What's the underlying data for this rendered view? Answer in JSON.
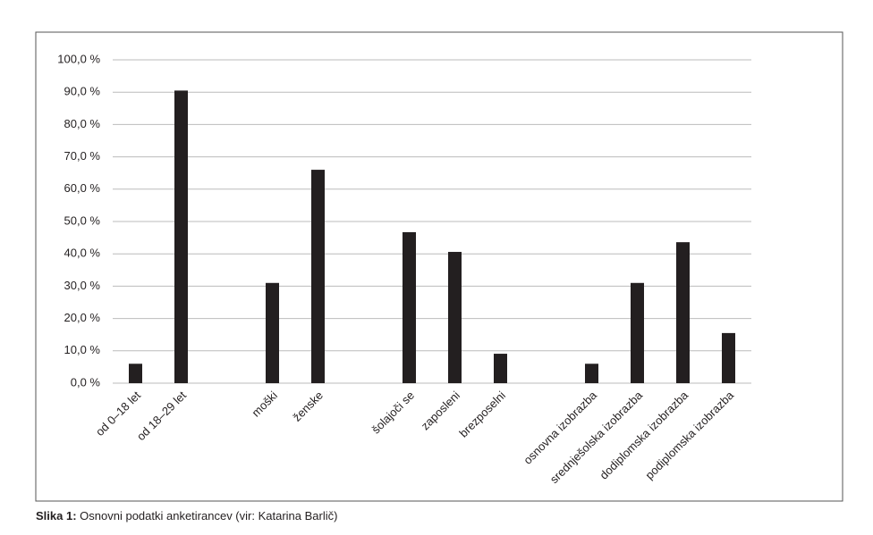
{
  "chart_data": {
    "type": "bar",
    "categories": [
      "od 0–18 let",
      "od 18–29 let",
      null,
      "moški",
      "ženske",
      null,
      "šolajoči se",
      "zaposleni",
      "brezposelni",
      null,
      "osnovna izobrazba",
      "srednješolska izobrazba",
      "dodiplomska izobrazba",
      "podiplomska izobrazba"
    ],
    "values": [
      6,
      90.5,
      null,
      31,
      66,
      null,
      46.7,
      40.6,
      9.1,
      null,
      6,
      31,
      43.6,
      15.5
    ],
    "color": "#231f20",
    "ylim": [
      0,
      100
    ],
    "yticks": [
      {
        "value": 0,
        "label": "0,0 %"
      },
      {
        "value": 10,
        "label": "10,0 %"
      },
      {
        "value": 20,
        "label": "20,0 %"
      },
      {
        "value": 30,
        "label": "30,0 %"
      },
      {
        "value": 40,
        "label": "40,0 %"
      },
      {
        "value": 50,
        "label": "50,0 %"
      },
      {
        "value": 60,
        "label": "60,0 %"
      },
      {
        "value": 70,
        "label": "70,0 %"
      },
      {
        "value": 80,
        "label": "80,0 %"
      },
      {
        "value": 90,
        "label": "90,0 %"
      },
      {
        "value": 100,
        "label": "100,0 %"
      }
    ],
    "grid": true
  },
  "caption_label": "Slika 1:",
  "caption": "Osnovni podatki anketirancev (vir: Katarina Barlič)"
}
